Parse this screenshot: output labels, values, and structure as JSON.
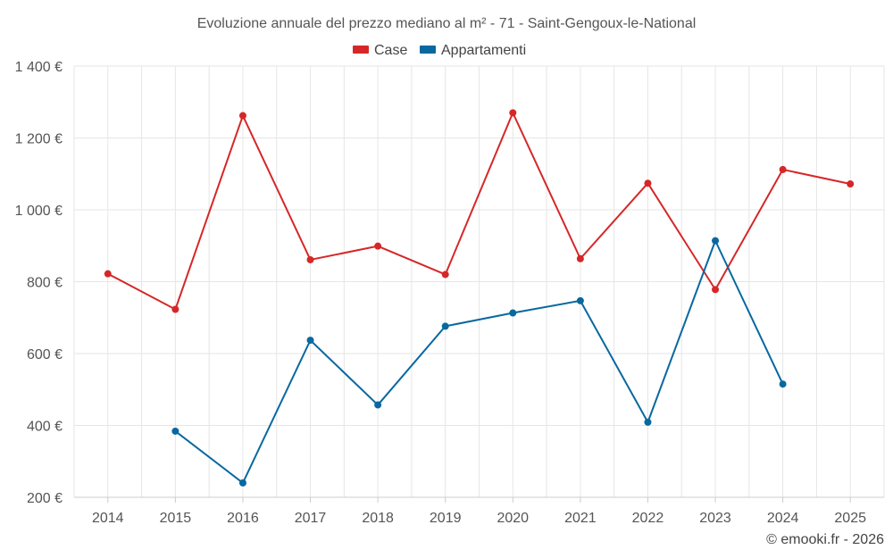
{
  "chart_data": {
    "type": "line",
    "title": "Evoluzione annuale del prezzo mediano al m² - 71 - Saint-Gengoux-le-National",
    "categories": [
      "2014",
      "2015",
      "2016",
      "2017",
      "2018",
      "2019",
      "2020",
      "2021",
      "2022",
      "2023",
      "2024",
      "2025"
    ],
    "ylim": [
      200,
      1400
    ],
    "yticks": [
      200,
      400,
      600,
      800,
      1000,
      1200,
      1400
    ],
    "ytick_labels": [
      "200 €",
      "400 €",
      "600 €",
      "800 €",
      "1 000 €",
      "1 200 €",
      "1 400 €"
    ],
    "xlabel": "",
    "ylabel": "",
    "grid": true,
    "legend_position": "top-center",
    "series": [
      {
        "name": "Case",
        "color": "#d62728",
        "values": [
          822,
          723,
          1262,
          861,
          899,
          820,
          1270,
          864,
          1074,
          778,
          1112,
          1072
        ]
      },
      {
        "name": "Appartamenti",
        "color": "#0868a0",
        "values": [
          null,
          384,
          240,
          637,
          457,
          676,
          713,
          747,
          409,
          914,
          515,
          null
        ]
      }
    ]
  },
  "credit": "© emooki.fr - 2026"
}
